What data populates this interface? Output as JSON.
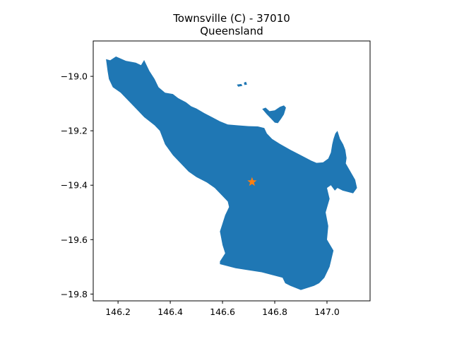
{
  "title": {
    "line1": "Townsville (C) - 37010",
    "line2": "Queensland"
  },
  "colors": {
    "region_fill": "#1f77b4",
    "marker_fill": "#ff7f0e",
    "axis": "#000000",
    "background": "#ffffff"
  },
  "chart_data": {
    "type": "map",
    "xlim": [
      146.105,
      147.165
    ],
    "ylim": [
      -19.825,
      -18.87
    ],
    "x_ticks": [
      {
        "value": 146.2,
        "label": "146.2"
      },
      {
        "value": 146.4,
        "label": "146.4"
      },
      {
        "value": 146.6,
        "label": "146.6"
      },
      {
        "value": 146.8,
        "label": "146.8"
      },
      {
        "value": 147.0,
        "label": "147.0"
      }
    ],
    "y_ticks": [
      {
        "value": -19.0,
        "label": "−19.0"
      },
      {
        "value": -19.2,
        "label": "−19.2"
      },
      {
        "value": -19.4,
        "label": "−19.4"
      },
      {
        "value": -19.6,
        "label": "−19.6"
      },
      {
        "value": -19.8,
        "label": "−19.8"
      }
    ],
    "marker": {
      "shape": "star",
      "lon": 146.713,
      "lat": -19.388
    },
    "regions": [
      {
        "name": "mainland",
        "coords": [
          [
            146.154,
            -18.937
          ],
          [
            146.17,
            -18.941
          ],
          [
            146.192,
            -18.927
          ],
          [
            146.23,
            -18.943
          ],
          [
            146.268,
            -18.95
          ],
          [
            146.288,
            -18.959
          ],
          [
            146.3,
            -18.94
          ],
          [
            146.32,
            -18.98
          ],
          [
            146.34,
            -19.01
          ],
          [
            146.355,
            -19.04
          ],
          [
            146.38,
            -19.06
          ],
          [
            146.41,
            -19.065
          ],
          [
            146.43,
            -19.08
          ],
          [
            146.46,
            -19.095
          ],
          [
            146.48,
            -19.11
          ],
          [
            146.5,
            -19.118
          ],
          [
            146.53,
            -19.135
          ],
          [
            146.56,
            -19.15
          ],
          [
            146.59,
            -19.165
          ],
          [
            146.62,
            -19.177
          ],
          [
            146.66,
            -19.18
          ],
          [
            146.7,
            -19.183
          ],
          [
            146.735,
            -19.184
          ],
          [
            146.76,
            -19.19
          ],
          [
            146.77,
            -19.21
          ],
          [
            146.79,
            -19.23
          ],
          [
            146.82,
            -19.248
          ],
          [
            146.86,
            -19.27
          ],
          [
            146.9,
            -19.29
          ],
          [
            146.94,
            -19.31
          ],
          [
            146.96,
            -19.318
          ],
          [
            146.985,
            -19.316
          ],
          [
            147.005,
            -19.302
          ],
          [
            147.015,
            -19.28
          ],
          [
            147.02,
            -19.25
          ],
          [
            147.025,
            -19.23
          ],
          [
            147.032,
            -19.21
          ],
          [
            147.04,
            -19.2
          ],
          [
            147.05,
            -19.23
          ],
          [
            147.062,
            -19.25
          ],
          [
            147.07,
            -19.27
          ],
          [
            147.075,
            -19.3
          ],
          [
            147.072,
            -19.32
          ],
          [
            147.09,
            -19.35
          ],
          [
            147.108,
            -19.38
          ],
          [
            147.115,
            -19.41
          ],
          [
            147.1,
            -19.43
          ],
          [
            147.06,
            -19.42
          ],
          [
            147.04,
            -19.41
          ],
          [
            147.03,
            -19.42
          ],
          [
            147.015,
            -19.4
          ],
          [
            147.0,
            -19.41
          ],
          [
            147.01,
            -19.45
          ],
          [
            146.995,
            -19.5
          ],
          [
            147.005,
            -19.55
          ],
          [
            147.0,
            -19.6
          ],
          [
            147.025,
            -19.64
          ],
          [
            147.01,
            -19.7
          ],
          [
            146.99,
            -19.74
          ],
          [
            146.97,
            -19.76
          ],
          [
            146.95,
            -19.77
          ],
          [
            146.9,
            -19.785
          ],
          [
            146.86,
            -19.77
          ],
          [
            146.84,
            -19.76
          ],
          [
            146.83,
            -19.74
          ],
          [
            146.75,
            -19.72
          ],
          [
            146.65,
            -19.705
          ],
          [
            146.59,
            -19.69
          ],
          [
            146.59,
            -19.68
          ],
          [
            146.61,
            -19.65
          ],
          [
            146.6,
            -19.62
          ],
          [
            146.59,
            -19.57
          ],
          [
            146.6,
            -19.54
          ],
          [
            146.61,
            -19.51
          ],
          [
            146.625,
            -19.48
          ],
          [
            146.62,
            -19.46
          ],
          [
            146.6,
            -19.44
          ],
          [
            146.57,
            -19.41
          ],
          [
            146.54,
            -19.39
          ],
          [
            146.5,
            -19.37
          ],
          [
            146.47,
            -19.35
          ],
          [
            146.45,
            -19.33
          ],
          [
            146.43,
            -19.31
          ],
          [
            146.41,
            -19.29
          ],
          [
            146.38,
            -19.25
          ],
          [
            146.36,
            -19.2
          ],
          [
            146.34,
            -19.18
          ],
          [
            146.3,
            -19.15
          ],
          [
            146.27,
            -19.12
          ],
          [
            146.24,
            -19.09
          ],
          [
            146.21,
            -19.06
          ],
          [
            146.18,
            -19.04
          ],
          [
            146.165,
            -19.01
          ],
          [
            146.16,
            -18.98
          ],
          [
            146.154,
            -18.937
          ]
        ]
      },
      {
        "name": "island-east",
        "coords": [
          [
            146.752,
            -19.12
          ],
          [
            146.765,
            -19.115
          ],
          [
            146.78,
            -19.128
          ],
          [
            146.8,
            -19.125
          ],
          [
            146.82,
            -19.112
          ],
          [
            146.835,
            -19.107
          ],
          [
            146.843,
            -19.115
          ],
          [
            146.835,
            -19.14
          ],
          [
            146.825,
            -19.155
          ],
          [
            146.812,
            -19.172
          ],
          [
            146.8,
            -19.17
          ],
          [
            146.785,
            -19.155
          ],
          [
            146.768,
            -19.138
          ],
          [
            146.752,
            -19.12
          ]
        ]
      },
      {
        "name": "islet-1",
        "coords": [
          [
            146.655,
            -19.03
          ],
          [
            146.672,
            -19.028
          ],
          [
            146.676,
            -19.035
          ],
          [
            146.66,
            -19.038
          ],
          [
            146.655,
            -19.03
          ]
        ]
      },
      {
        "name": "islet-2",
        "coords": [
          [
            146.682,
            -19.023
          ],
          [
            146.69,
            -19.02
          ],
          [
            146.694,
            -19.03
          ],
          [
            146.684,
            -19.032
          ],
          [
            146.682,
            -19.023
          ]
        ]
      }
    ]
  }
}
